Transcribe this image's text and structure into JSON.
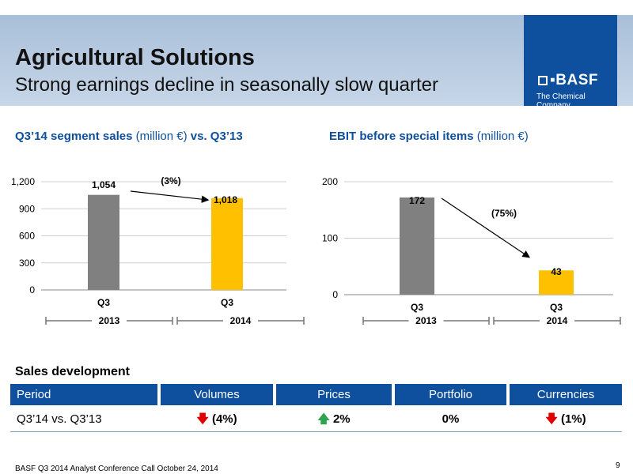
{
  "header": {
    "title": "Agricultural Solutions",
    "subtitle": "Strong earnings decline in seasonally slow quarter",
    "logo_name": "BASF",
    "logo_tagline": "The Chemical Company"
  },
  "left_heading": {
    "bold1": "Q3’14 segment sales",
    "normal": " (million €) ",
    "bold2": "vs. Q3’13"
  },
  "right_heading": {
    "bold": "EBIT before special items",
    "normal": " (million €)"
  },
  "chart_data": [
    {
      "type": "bar",
      "categories": [
        "Q3",
        "Q3"
      ],
      "groups": [
        "2013",
        "2014"
      ],
      "values": [
        1054,
        1018
      ],
      "value_labels": [
        "1,054",
        "1,018"
      ],
      "ylim": [
        0,
        1200
      ],
      "yticks": [
        0,
        300,
        600,
        900,
        1200
      ],
      "ytick_labels": [
        "0",
        "300",
        "600",
        "900",
        "1,200"
      ],
      "colors": [
        "#808080",
        "#ffc000"
      ],
      "change_label": "(3%)",
      "grid": true
    },
    {
      "type": "bar",
      "categories": [
        "Q3",
        "Q3"
      ],
      "groups": [
        "2013",
        "2014"
      ],
      "values": [
        172,
        43
      ],
      "value_labels": [
        "172",
        "43"
      ],
      "ylim": [
        0,
        200
      ],
      "yticks": [
        0,
        100,
        200
      ],
      "ytick_labels": [
        "0",
        "100",
        "200"
      ],
      "colors": [
        "#808080",
        "#ffc000"
      ],
      "change_label": "(75%)",
      "grid": true
    }
  ],
  "sales_development": {
    "title": "Sales development",
    "headers": [
      "Period",
      "Volumes",
      "Prices",
      "Portfolio",
      "Currencies"
    ],
    "row": {
      "period": "Q3’14 vs. Q3’13",
      "volumes": "(4%)",
      "prices": "2%",
      "portfolio": "0%",
      "currencies": "(1%)"
    },
    "colors": {
      "header_bg": "#0e4f9e",
      "down": "#e00000",
      "up": "#2ea44f"
    }
  },
  "footer": {
    "text": "BASF Q3 2014 Analyst Conference Call October 24, 2014",
    "page": "9"
  }
}
